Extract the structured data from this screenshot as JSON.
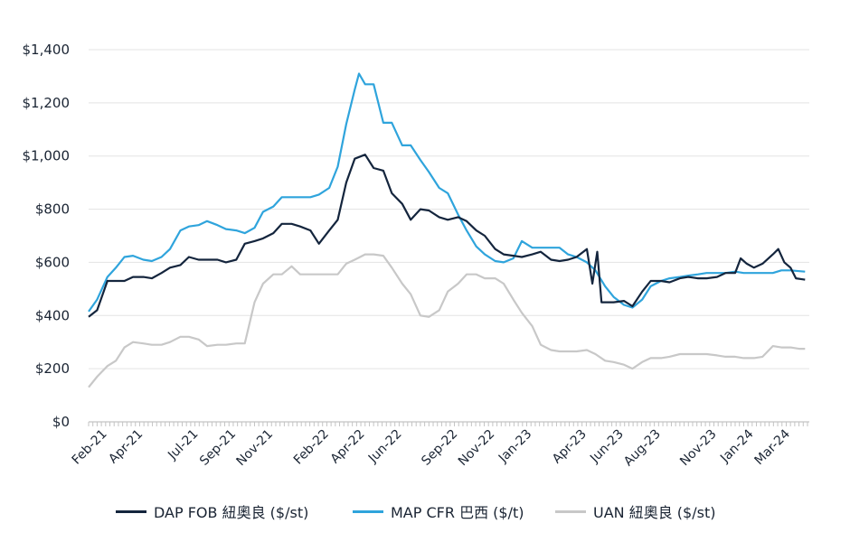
{
  "chart_data": {
    "type": "line",
    "title": "",
    "xlabel": "",
    "ylabel": "",
    "ylim": [
      0,
      1400
    ],
    "xlim": [
      "2021-01-01",
      "2024-04-01"
    ],
    "grid": true,
    "legend_position": "bottom",
    "y_tick_values": [
      0,
      200,
      400,
      600,
      800,
      1000,
      1200,
      1400
    ],
    "y_tick_labels": [
      "$0",
      "$200",
      "$400",
      "$600",
      "$800",
      "$1,000",
      "$1,200",
      "$1,400"
    ],
    "x_ticks": [
      {
        "date": "2021-02-01",
        "label": "Feb-21"
      },
      {
        "date": "2021-04-01",
        "label": "Apr-21"
      },
      {
        "date": "2021-07-01",
        "label": "Jul-21"
      },
      {
        "date": "2021-09-01",
        "label": "Sep-21"
      },
      {
        "date": "2021-11-01",
        "label": "Nov-21"
      },
      {
        "date": "2022-02-01",
        "label": "Feb-22"
      },
      {
        "date": "2022-04-01",
        "label": "Apr-22"
      },
      {
        "date": "2022-06-01",
        "label": "Jun-22"
      },
      {
        "date": "2022-09-01",
        "label": "Sep-22"
      },
      {
        "date": "2022-11-01",
        "label": "Nov-22"
      },
      {
        "date": "2023-01-01",
        "label": "Jan-23"
      },
      {
        "date": "2023-04-01",
        "label": "Apr-23"
      },
      {
        "date": "2023-06-01",
        "label": "Jun-23"
      },
      {
        "date": "2023-08-01",
        "label": "Aug-23"
      },
      {
        "date": "2023-11-01",
        "label": "Nov-23"
      },
      {
        "date": "2024-01-01",
        "label": "Jan-24"
      },
      {
        "date": "2024-03-01",
        "label": "Mar-24"
      }
    ],
    "series": [
      {
        "name": "DAP FOB 紐奧良 ($/st)",
        "color": "#14253d",
        "points": [
          [
            "2021-01-01",
            395
          ],
          [
            "2021-01-15",
            420
          ],
          [
            "2021-02-01",
            530
          ],
          [
            "2021-02-15",
            530
          ],
          [
            "2021-03-01",
            530
          ],
          [
            "2021-03-15",
            545
          ],
          [
            "2021-04-01",
            545
          ],
          [
            "2021-04-15",
            540
          ],
          [
            "2021-05-01",
            560
          ],
          [
            "2021-05-15",
            580
          ],
          [
            "2021-06-01",
            590
          ],
          [
            "2021-06-15",
            620
          ],
          [
            "2021-07-01",
            610
          ],
          [
            "2021-07-15",
            610
          ],
          [
            "2021-08-01",
            610
          ],
          [
            "2021-08-15",
            600
          ],
          [
            "2021-09-01",
            610
          ],
          [
            "2021-09-15",
            670
          ],
          [
            "2021-10-01",
            680
          ],
          [
            "2021-10-15",
            690
          ],
          [
            "2021-11-01",
            710
          ],
          [
            "2021-11-15",
            745
          ],
          [
            "2021-12-01",
            745
          ],
          [
            "2021-12-15",
            735
          ],
          [
            "2022-01-01",
            720
          ],
          [
            "2022-01-15",
            670
          ],
          [
            "2022-02-01",
            720
          ],
          [
            "2022-02-15",
            760
          ],
          [
            "2022-03-01",
            900
          ],
          [
            "2022-03-15",
            990
          ],
          [
            "2022-04-01",
            1005
          ],
          [
            "2022-04-15",
            955
          ],
          [
            "2022-05-01",
            945
          ],
          [
            "2022-05-15",
            860
          ],
          [
            "2022-06-01",
            820
          ],
          [
            "2022-06-15",
            760
          ],
          [
            "2022-07-01",
            800
          ],
          [
            "2022-07-15",
            795
          ],
          [
            "2022-08-01",
            770
          ],
          [
            "2022-08-15",
            760
          ],
          [
            "2022-09-01",
            770
          ],
          [
            "2022-09-15",
            755
          ],
          [
            "2022-10-01",
            720
          ],
          [
            "2022-10-15",
            700
          ],
          [
            "2022-11-01",
            650
          ],
          [
            "2022-11-15",
            630
          ],
          [
            "2022-12-01",
            625
          ],
          [
            "2022-12-15",
            620
          ],
          [
            "2023-01-01",
            630
          ],
          [
            "2023-01-15",
            640
          ],
          [
            "2023-02-01",
            610
          ],
          [
            "2023-02-15",
            605
          ],
          [
            "2023-03-01",
            610
          ],
          [
            "2023-03-15",
            620
          ],
          [
            "2023-04-01",
            650
          ],
          [
            "2023-04-10",
            520
          ],
          [
            "2023-04-18",
            640
          ],
          [
            "2023-04-25",
            450
          ],
          [
            "2023-05-15",
            450
          ],
          [
            "2023-06-01",
            455
          ],
          [
            "2023-06-15",
            435
          ],
          [
            "2023-07-01",
            490
          ],
          [
            "2023-07-15",
            530
          ],
          [
            "2023-08-01",
            530
          ],
          [
            "2023-08-15",
            525
          ],
          [
            "2023-09-01",
            540
          ],
          [
            "2023-09-15",
            545
          ],
          [
            "2023-10-01",
            540
          ],
          [
            "2023-10-15",
            540
          ],
          [
            "2023-11-01",
            545
          ],
          [
            "2023-11-15",
            560
          ],
          [
            "2023-12-01",
            560
          ],
          [
            "2023-12-10",
            615
          ],
          [
            "2023-12-20",
            595
          ],
          [
            "2024-01-01",
            580
          ],
          [
            "2024-01-15",
            595
          ],
          [
            "2024-02-01",
            630
          ],
          [
            "2024-02-10",
            650
          ],
          [
            "2024-02-20",
            600
          ],
          [
            "2024-03-01",
            580
          ],
          [
            "2024-03-10",
            540
          ],
          [
            "2024-03-25",
            535
          ]
        ]
      },
      {
        "name": "MAP CFR 巴西 ($/t)",
        "color": "#2fa4dc",
        "points": [
          [
            "2021-01-01",
            415
          ],
          [
            "2021-01-15",
            460
          ],
          [
            "2021-02-01",
            545
          ],
          [
            "2021-02-15",
            580
          ],
          [
            "2021-03-01",
            620
          ],
          [
            "2021-03-15",
            625
          ],
          [
            "2021-04-01",
            610
          ],
          [
            "2021-04-15",
            605
          ],
          [
            "2021-05-01",
            620
          ],
          [
            "2021-05-15",
            650
          ],
          [
            "2021-06-01",
            720
          ],
          [
            "2021-06-15",
            735
          ],
          [
            "2021-07-01",
            740
          ],
          [
            "2021-07-15",
            755
          ],
          [
            "2021-08-01",
            740
          ],
          [
            "2021-08-15",
            725
          ],
          [
            "2021-09-01",
            720
          ],
          [
            "2021-09-15",
            710
          ],
          [
            "2021-10-01",
            730
          ],
          [
            "2021-10-15",
            790
          ],
          [
            "2021-11-01",
            810
          ],
          [
            "2021-11-15",
            845
          ],
          [
            "2021-12-01",
            845
          ],
          [
            "2021-12-15",
            845
          ],
          [
            "2022-01-01",
            845
          ],
          [
            "2022-01-15",
            855
          ],
          [
            "2022-02-01",
            880
          ],
          [
            "2022-02-15",
            960
          ],
          [
            "2022-03-01",
            1120
          ],
          [
            "2022-03-15",
            1250
          ],
          [
            "2022-03-22",
            1310
          ],
          [
            "2022-04-01",
            1270
          ],
          [
            "2022-04-15",
            1270
          ],
          [
            "2022-05-01",
            1125
          ],
          [
            "2022-05-15",
            1125
          ],
          [
            "2022-06-01",
            1040
          ],
          [
            "2022-06-15",
            1040
          ],
          [
            "2022-07-01",
            985
          ],
          [
            "2022-07-15",
            940
          ],
          [
            "2022-08-01",
            880
          ],
          [
            "2022-08-15",
            860
          ],
          [
            "2022-09-01",
            780
          ],
          [
            "2022-09-15",
            720
          ],
          [
            "2022-10-01",
            660
          ],
          [
            "2022-10-15",
            630
          ],
          [
            "2022-11-01",
            605
          ],
          [
            "2022-11-15",
            600
          ],
          [
            "2022-12-01",
            615
          ],
          [
            "2022-12-15",
            680
          ],
          [
            "2023-01-01",
            655
          ],
          [
            "2023-01-15",
            655
          ],
          [
            "2023-02-01",
            655
          ],
          [
            "2023-02-15",
            655
          ],
          [
            "2023-03-01",
            630
          ],
          [
            "2023-03-15",
            620
          ],
          [
            "2023-04-01",
            600
          ],
          [
            "2023-04-15",
            570
          ],
          [
            "2023-05-01",
            510
          ],
          [
            "2023-05-15",
            470
          ],
          [
            "2023-06-01",
            440
          ],
          [
            "2023-06-15",
            430
          ],
          [
            "2023-07-01",
            460
          ],
          [
            "2023-07-15",
            510
          ],
          [
            "2023-08-01",
            530
          ],
          [
            "2023-08-15",
            540
          ],
          [
            "2023-09-01",
            545
          ],
          [
            "2023-09-15",
            550
          ],
          [
            "2023-10-01",
            555
          ],
          [
            "2023-10-15",
            560
          ],
          [
            "2023-11-01",
            560
          ],
          [
            "2023-11-15",
            560
          ],
          [
            "2023-12-01",
            565
          ],
          [
            "2023-12-15",
            560
          ],
          [
            "2024-01-01",
            560
          ],
          [
            "2024-01-15",
            560
          ],
          [
            "2024-02-01",
            560
          ],
          [
            "2024-02-15",
            570
          ],
          [
            "2024-03-01",
            570
          ],
          [
            "2024-03-25",
            565
          ]
        ]
      },
      {
        "name": "UAN 紐奧良 ($/st)",
        "color": "#c8c8c8",
        "points": [
          [
            "2021-01-01",
            130
          ],
          [
            "2021-01-15",
            170
          ],
          [
            "2021-02-01",
            210
          ],
          [
            "2021-02-15",
            230
          ],
          [
            "2021-03-01",
            280
          ],
          [
            "2021-03-15",
            300
          ],
          [
            "2021-04-01",
            295
          ],
          [
            "2021-04-15",
            290
          ],
          [
            "2021-05-01",
            290
          ],
          [
            "2021-05-15",
            300
          ],
          [
            "2021-06-01",
            320
          ],
          [
            "2021-06-15",
            320
          ],
          [
            "2021-07-01",
            310
          ],
          [
            "2021-07-15",
            285
          ],
          [
            "2021-08-01",
            290
          ],
          [
            "2021-08-15",
            290
          ],
          [
            "2021-09-01",
            295
          ],
          [
            "2021-09-15",
            295
          ],
          [
            "2021-10-01",
            450
          ],
          [
            "2021-10-15",
            520
          ],
          [
            "2021-11-01",
            555
          ],
          [
            "2021-11-15",
            555
          ],
          [
            "2021-12-01",
            585
          ],
          [
            "2021-12-15",
            555
          ],
          [
            "2022-01-01",
            555
          ],
          [
            "2022-01-15",
            555
          ],
          [
            "2022-02-01",
            555
          ],
          [
            "2022-02-15",
            555
          ],
          [
            "2022-03-01",
            595
          ],
          [
            "2022-03-15",
            610
          ],
          [
            "2022-04-01",
            630
          ],
          [
            "2022-04-15",
            630
          ],
          [
            "2022-05-01",
            625
          ],
          [
            "2022-05-15",
            580
          ],
          [
            "2022-06-01",
            520
          ],
          [
            "2022-06-15",
            480
          ],
          [
            "2022-07-01",
            400
          ],
          [
            "2022-07-15",
            395
          ],
          [
            "2022-08-01",
            420
          ],
          [
            "2022-08-15",
            490
          ],
          [
            "2022-09-01",
            520
          ],
          [
            "2022-09-15",
            555
          ],
          [
            "2022-10-01",
            555
          ],
          [
            "2022-10-15",
            540
          ],
          [
            "2022-11-01",
            540
          ],
          [
            "2022-11-15",
            520
          ],
          [
            "2022-12-01",
            460
          ],
          [
            "2022-12-15",
            410
          ],
          [
            "2023-01-01",
            360
          ],
          [
            "2023-01-15",
            290
          ],
          [
            "2023-02-01",
            270
          ],
          [
            "2023-02-15",
            265
          ],
          [
            "2023-03-01",
            265
          ],
          [
            "2023-03-15",
            265
          ],
          [
            "2023-04-01",
            270
          ],
          [
            "2023-04-15",
            255
          ],
          [
            "2023-05-01",
            230
          ],
          [
            "2023-05-15",
            225
          ],
          [
            "2023-06-01",
            215
          ],
          [
            "2023-06-15",
            200
          ],
          [
            "2023-07-01",
            225
          ],
          [
            "2023-07-15",
            240
          ],
          [
            "2023-08-01",
            240
          ],
          [
            "2023-08-15",
            245
          ],
          [
            "2023-09-01",
            255
          ],
          [
            "2023-09-15",
            255
          ],
          [
            "2023-10-01",
            255
          ],
          [
            "2023-10-15",
            255
          ],
          [
            "2023-11-01",
            250
          ],
          [
            "2023-11-15",
            245
          ],
          [
            "2023-12-01",
            245
          ],
          [
            "2023-12-15",
            240
          ],
          [
            "2024-01-01",
            240
          ],
          [
            "2024-01-15",
            245
          ],
          [
            "2024-02-01",
            285
          ],
          [
            "2024-02-15",
            280
          ],
          [
            "2024-03-01",
            280
          ],
          [
            "2024-03-15",
            275
          ],
          [
            "2024-03-25",
            275
          ]
        ]
      }
    ]
  }
}
